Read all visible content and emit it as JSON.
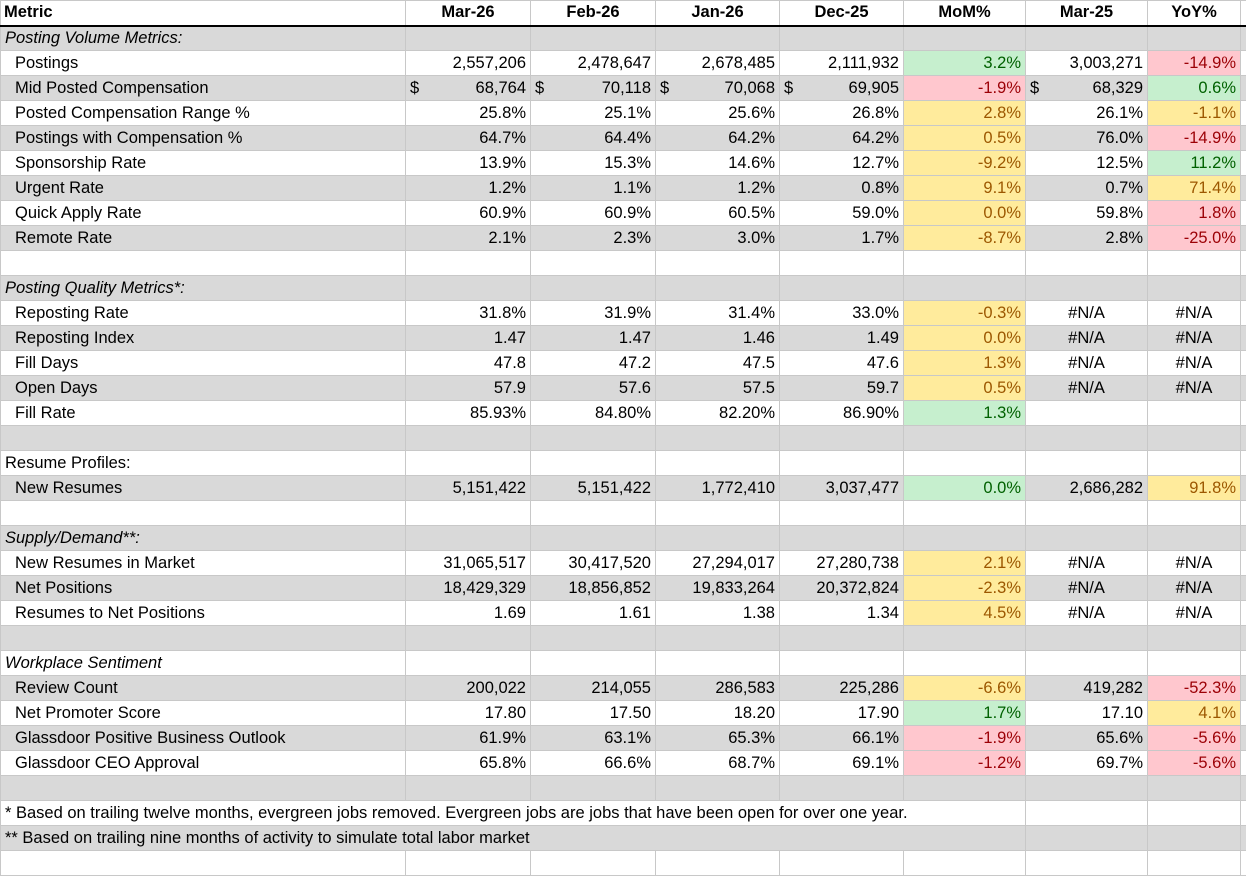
{
  "header": [
    "Metric",
    "Mar-26",
    "Feb-26",
    "Jan-26",
    "Dec-25",
    "MoM%",
    "Mar-25",
    "YoY%"
  ],
  "fills": {
    "green": {
      "bg": "#c6efce",
      "fg": "#006100"
    },
    "red": {
      "bg": "#ffc7ce",
      "fg": "#9c0006"
    },
    "yellow": {
      "bg": "#ffeb9c",
      "fg": "#9c5700"
    }
  },
  "rows": [
    {
      "kind": "section",
      "italic": true,
      "label": "Posting Volume Metrics:"
    },
    {
      "kind": "item",
      "label": "Postings",
      "values": [
        "2,557,206",
        "2,478,647",
        "2,678,485",
        "2,111,932",
        "3.2%",
        "3,003,271",
        "-14.9%"
      ],
      "mom": "green",
      "yoy": "red"
    },
    {
      "kind": "item",
      "label": "Mid Posted Compensation",
      "currency": "$",
      "currency_columns": [
        0,
        1,
        2,
        3,
        5
      ],
      "values": [
        "68,764",
        "70,118",
        "70,068",
        "69,905",
        "-1.9%",
        "68,329",
        "0.6%"
      ],
      "mom": "red",
      "yoy": "green"
    },
    {
      "kind": "item",
      "label": "Posted Compensation Range %",
      "values": [
        "25.8%",
        "25.1%",
        "25.6%",
        "26.8%",
        "2.8%",
        "26.1%",
        "-1.1%"
      ],
      "mom": "yellow",
      "yoy": "yellow"
    },
    {
      "kind": "item",
      "label": "Postings with Compensation %",
      "values": [
        "64.7%",
        "64.4%",
        "64.2%",
        "64.2%",
        "0.5%",
        "76.0%",
        "-14.9%"
      ],
      "mom": "yellow",
      "yoy": "red"
    },
    {
      "kind": "item",
      "label": "Sponsorship Rate",
      "values": [
        "13.9%",
        "15.3%",
        "14.6%",
        "12.7%",
        "-9.2%",
        "12.5%",
        "11.2%"
      ],
      "mom": "yellow",
      "yoy": "green"
    },
    {
      "kind": "item",
      "label": "Urgent Rate",
      "values": [
        "1.2%",
        "1.1%",
        "1.2%",
        "0.8%",
        "9.1%",
        "0.7%",
        "71.4%"
      ],
      "mom": "yellow",
      "yoy": "yellow"
    },
    {
      "kind": "item",
      "label": "Quick Apply Rate",
      "values": [
        "60.9%",
        "60.9%",
        "60.5%",
        "59.0%",
        "0.0%",
        "59.8%",
        "1.8%"
      ],
      "mom": "yellow",
      "yoy": "red"
    },
    {
      "kind": "item",
      "label": "Remote Rate",
      "values": [
        "2.1%",
        "2.3%",
        "3.0%",
        "1.7%",
        "-8.7%",
        "2.8%",
        "-25.0%"
      ],
      "mom": "yellow",
      "yoy": "red"
    },
    {
      "kind": "blank"
    },
    {
      "kind": "section",
      "italic": true,
      "label": "Posting Quality Metrics*:"
    },
    {
      "kind": "item",
      "label": "Reposting Rate",
      "values": [
        "31.8%",
        "31.9%",
        "31.4%",
        "33.0%",
        "-0.3%",
        "#N/A",
        "#N/A"
      ],
      "mom": "yellow",
      "na_center": true
    },
    {
      "kind": "item",
      "label": "Reposting Index",
      "values": [
        "1.47",
        "1.47",
        "1.46",
        "1.49",
        "0.0%",
        "#N/A",
        "#N/A"
      ],
      "mom": "yellow",
      "na_center": true
    },
    {
      "kind": "item",
      "label": "Fill Days",
      "values": [
        "47.8",
        "47.2",
        "47.5",
        "47.6",
        "1.3%",
        "#N/A",
        "#N/A"
      ],
      "mom": "yellow",
      "na_center": true
    },
    {
      "kind": "item",
      "label": "Open Days",
      "values": [
        "57.9",
        "57.6",
        "57.5",
        "59.7",
        "0.5%",
        "#N/A",
        "#N/A"
      ],
      "mom": "yellow",
      "na_center": true
    },
    {
      "kind": "item",
      "label": "Fill Rate",
      "values": [
        "85.93%",
        "84.80%",
        "82.20%",
        "86.90%",
        "1.3%",
        null,
        null
      ],
      "mom": "green"
    },
    {
      "kind": "blank"
    },
    {
      "kind": "section",
      "italic": false,
      "label": "Resume Profiles:"
    },
    {
      "kind": "item",
      "label": "New Resumes",
      "values": [
        "5,151,422",
        "5,151,422",
        "1,772,410",
        "3,037,477",
        "0.0%",
        "2,686,282",
        "91.8%"
      ],
      "mom": "green",
      "yoy": "yellow"
    },
    {
      "kind": "blank"
    },
    {
      "kind": "section",
      "italic": true,
      "label": "Supply/Demand**:"
    },
    {
      "kind": "item",
      "label": "New Resumes in Market",
      "values": [
        "31,065,517",
        "30,417,520",
        "27,294,017",
        "27,280,738",
        "2.1%",
        "#N/A",
        "#N/A"
      ],
      "mom": "yellow",
      "na_center": true
    },
    {
      "kind": "item",
      "label": "Net Positions",
      "values": [
        "18,429,329",
        "18,856,852",
        "19,833,264",
        "20,372,824",
        "-2.3%",
        "#N/A",
        "#N/A"
      ],
      "mom": "yellow",
      "na_center": true
    },
    {
      "kind": "item",
      "label": "Resumes to Net Positions",
      "values": [
        "1.69",
        "1.61",
        "1.38",
        "1.34",
        "4.5%",
        "#N/A",
        "#N/A"
      ],
      "mom": "yellow",
      "na_center": true
    },
    {
      "kind": "blank"
    },
    {
      "kind": "section",
      "italic": true,
      "label": "Workplace Sentiment"
    },
    {
      "kind": "item",
      "label": "Review Count",
      "values": [
        "200,022",
        "214,055",
        "286,583",
        "225,286",
        "-6.6%",
        "419,282",
        "-52.3%"
      ],
      "mom": "yellow",
      "yoy": "red"
    },
    {
      "kind": "item",
      "label": "Net Promoter Score",
      "values": [
        "17.80",
        "17.50",
        "18.20",
        "17.90",
        "1.7%",
        "17.10",
        "4.1%"
      ],
      "mom": "green",
      "yoy": "yellow"
    },
    {
      "kind": "item",
      "label": "Glassdoor Positive Business Outlook",
      "values": [
        "61.9%",
        "63.1%",
        "65.3%",
        "66.1%",
        "-1.9%",
        "65.6%",
        "-5.6%"
      ],
      "mom": "red",
      "yoy": "red"
    },
    {
      "kind": "item",
      "label": "Glassdoor CEO Approval",
      "values": [
        "65.8%",
        "66.6%",
        "68.7%",
        "69.1%",
        "-1.2%",
        "69.7%",
        "-5.6%"
      ],
      "mom": "red",
      "yoy": "red"
    },
    {
      "kind": "blank"
    },
    {
      "kind": "note",
      "label": "* Based on trailing twelve months, evergreen jobs removed. Evergreen jobs are jobs that have been open for over one year."
    },
    {
      "kind": "note",
      "label": "** Based on trailing nine months of activity to simulate total labor market"
    },
    {
      "kind": "blank"
    }
  ]
}
